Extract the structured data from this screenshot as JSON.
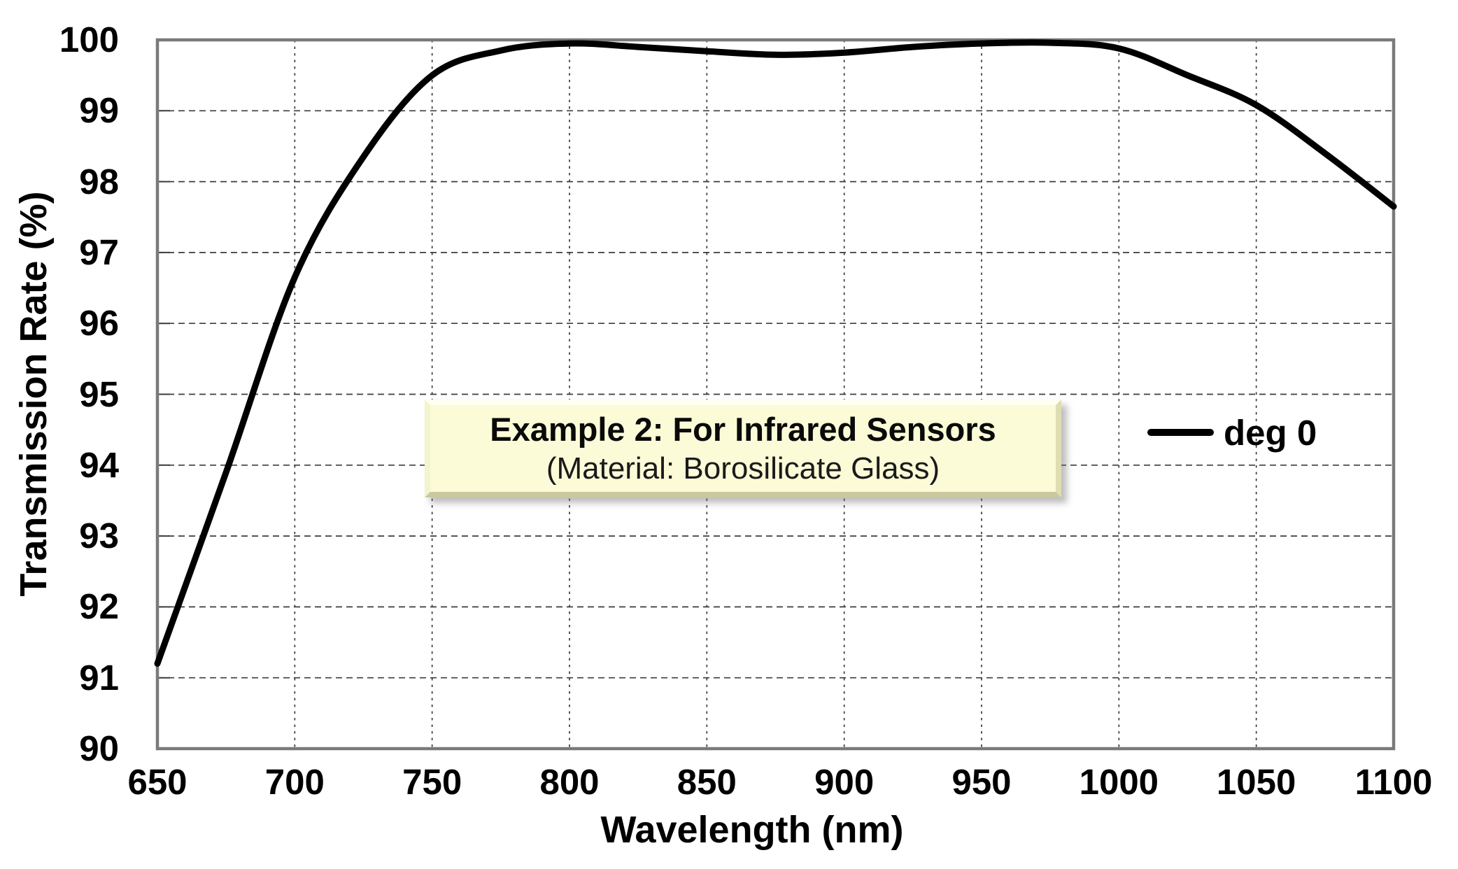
{
  "chart_data": {
    "type": "line",
    "title": "",
    "xlabel": "Wavelength (nm)",
    "ylabel": "Transmission Rate (%)",
    "xlim": [
      650,
      1100
    ],
    "ylim": [
      90,
      100
    ],
    "x_ticks": [
      650,
      700,
      750,
      800,
      850,
      900,
      950,
      1000,
      1050,
      1100
    ],
    "y_ticks": [
      90,
      91,
      92,
      93,
      94,
      95,
      96,
      97,
      98,
      99,
      100
    ],
    "grid": true,
    "grid_style": "dashed",
    "legend_position": "right-middle",
    "series": [
      {
        "name": "deg 0",
        "color": "#000000",
        "x": [
          650,
          675,
          700,
          725,
          750,
          775,
          800,
          825,
          850,
          875,
          900,
          925,
          950,
          975,
          1000,
          1025,
          1050,
          1075,
          1100
        ],
        "y": [
          91.2,
          93.9,
          96.65,
          98.35,
          99.5,
          99.85,
          99.95,
          99.9,
          99.84,
          99.79,
          99.82,
          99.9,
          99.95,
          99.96,
          99.88,
          99.5,
          99.08,
          98.4,
          97.65
        ]
      }
    ]
  },
  "legend": {
    "entries": [
      {
        "label": "deg 0",
        "color": "#000000"
      }
    ]
  },
  "annotation_box": {
    "title": "Example 2: For Infrared Sensors",
    "subtitle": "(Material: Borosilicate Glass)",
    "bg_color": "#fbfbd8"
  },
  "colors": {
    "curve": "#000000",
    "frame": "#7a7a7a",
    "gridline": "#3c3c3c",
    "text": "#000000",
    "background": "#ffffff",
    "annotation_bg": "#fbfbd8"
  }
}
